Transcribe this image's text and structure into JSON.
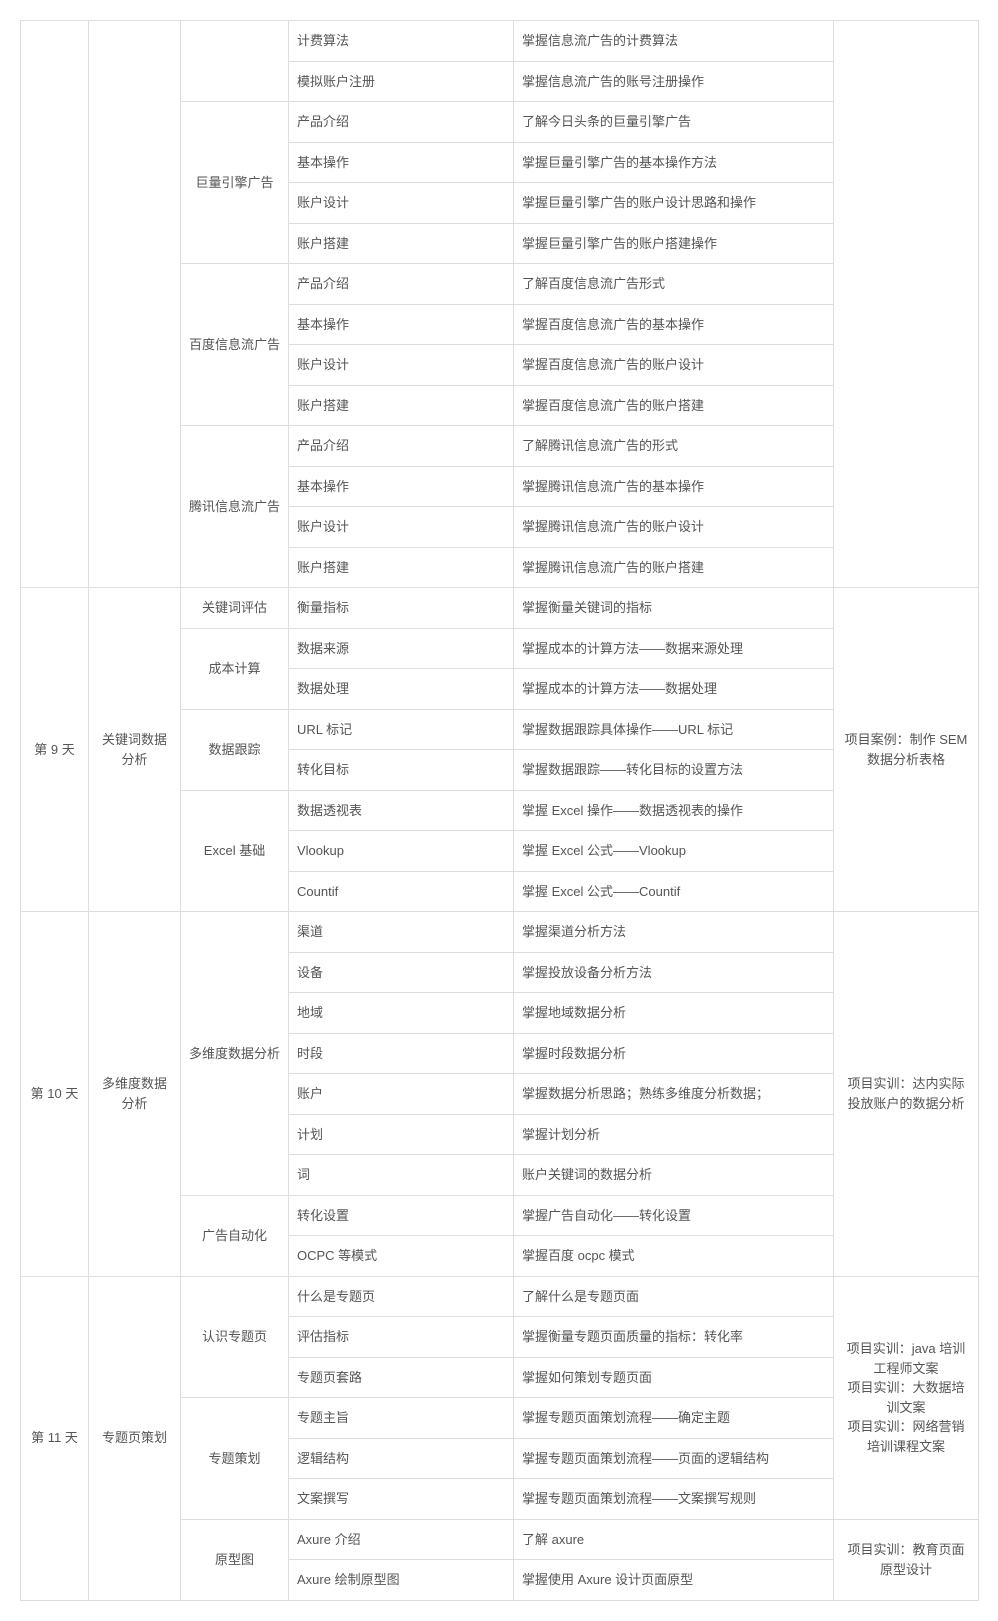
{
  "table": {
    "colors": {
      "border": "#dddddd",
      "text": "#555555",
      "background": "#ffffff"
    },
    "font_size": 13,
    "rows": [
      {
        "c4": "计费算法",
        "c5": "掌握信息流广告的计费算法"
      },
      {
        "c4": "模拟账户注册",
        "c5": "掌握信息流广告的账号注册操作"
      },
      {
        "c3": "巨量引擎广告",
        "c4": "产品介绍",
        "c5": "了解今日头条的巨量引擎广告"
      },
      {
        "c4": "基本操作",
        "c5": "掌握巨量引擎广告的基本操作方法"
      },
      {
        "c4": "账户设计",
        "c5": "掌握巨量引擎广告的账户设计思路和操作"
      },
      {
        "c4": "账户搭建",
        "c5": "掌握巨量引擎广告的账户搭建操作"
      },
      {
        "c3": "百度信息流广告",
        "c4": "产品介绍",
        "c5": "了解百度信息流广告形式"
      },
      {
        "c4": "基本操作",
        "c5": "掌握百度信息流广告的基本操作"
      },
      {
        "c4": "账户设计",
        "c5": "掌握百度信息流广告的账户设计"
      },
      {
        "c4": "账户搭建",
        "c5": "掌握百度信息流广告的账户搭建"
      },
      {
        "c3": "腾讯信息流广告",
        "c4": "产品介绍",
        "c5": "了解腾讯信息流广告的形式"
      },
      {
        "c4": "基本操作",
        "c5": "掌握腾讯信息流广告的基本操作"
      },
      {
        "c4": "账户设计",
        "c5": "掌握腾讯信息流广告的账户设计"
      },
      {
        "c4": "账户搭建",
        "c5": "掌握腾讯信息流广告的账户搭建"
      },
      {
        "c1": "第 9 天",
        "c2": "关键词数据分析",
        "c3": "关键词评估",
        "c4": "衡量指标",
        "c5": "掌握衡量关键词的指标",
        "c6": "项目案例：制作 SEM 数据分析表格"
      },
      {
        "c3": "成本计算",
        "c4": "数据来源",
        "c5": "掌握成本的计算方法——数据来源处理"
      },
      {
        "c4": "数据处理",
        "c5": "掌握成本的计算方法——数据处理"
      },
      {
        "c3": "数据跟踪",
        "c4": "URL 标记",
        "c5": "掌握数据跟踪具体操作——URL 标记"
      },
      {
        "c4": "转化目标",
        "c5": "掌握数据跟踪——转化目标的设置方法"
      },
      {
        "c3": "Excel 基础",
        "c4": "数据透视表",
        "c5": "掌握 Excel 操作——数据透视表的操作"
      },
      {
        "c4": "Vlookup",
        "c5": "掌握 Excel 公式——Vlookup"
      },
      {
        "c4": "Countif",
        "c5": "掌握 Excel 公式——Countif"
      },
      {
        "c1": "第 10 天",
        "c2": "多维度数据分析",
        "c3": "多维度数据分析",
        "c4": "渠道",
        "c5": "掌握渠道分析方法",
        "c6": "项目实训：达内实际投放账户的数据分析"
      },
      {
        "c4": "设备",
        "c5": "掌握投放设备分析方法"
      },
      {
        "c4": "地域",
        "c5": "掌握地域数据分析"
      },
      {
        "c4": "时段",
        "c5": "掌握时段数据分析"
      },
      {
        "c4": "账户",
        "c5": "掌握数据分析思路；熟练多维度分析数据；"
      },
      {
        "c4": "计划",
        "c5": "掌握计划分析"
      },
      {
        "c4": "词",
        "c5": "账户关键词的数据分析"
      },
      {
        "c3": "广告自动化",
        "c4": "转化设置",
        "c5": "掌握广告自动化——转化设置"
      },
      {
        "c4": "OCPC 等模式",
        "c5": "掌握百度 ocpc 模式"
      },
      {
        "c1": "第 11 天",
        "c2": "专题页策划",
        "c3": "认识专题页",
        "c4": "什么是专题页",
        "c5": "了解什么是专题页面",
        "c6": "项目实训：java 培训工程师文案\n项目实训：大数据培训文案\n项目实训：网络营销培训课程文案"
      },
      {
        "c4": "评估指标",
        "c5": "掌握衡量专题页面质量的指标：转化率"
      },
      {
        "c4": "专题页套路",
        "c5": "掌握如何策划专题页面"
      },
      {
        "c3": "专题策划",
        "c4": "专题主旨",
        "c5": "掌握专题页面策划流程——确定主题"
      },
      {
        "c4": "逻辑结构",
        "c5": "掌握专题页面策划流程——页面的逻辑结构"
      },
      {
        "c4": "文案撰写",
        "c5": "掌握专题页面策划流程——文案撰写规则"
      },
      {
        "c3": "原型图",
        "c4": "Axure 介绍",
        "c5": "了解 axure",
        "c6": "项目实训：教育页面原型设计"
      },
      {
        "c4": "Axure 绘制原型图",
        "c5": "掌握使用 Axure 设计页面原型"
      }
    ]
  }
}
